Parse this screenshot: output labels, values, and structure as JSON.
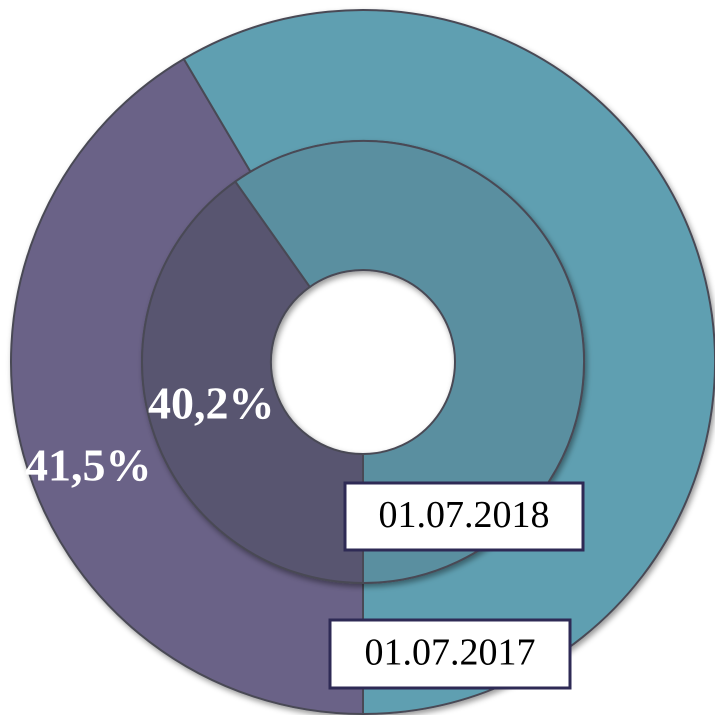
{
  "chart_data": {
    "type": "donut",
    "start_angle": 180,
    "series": [
      {
        "name": "01.07.2017",
        "values": [
          41.5,
          58.5
        ],
        "value_labels": [
          "41,5%",
          null
        ],
        "colors": [
          "#6a6287",
          "#5f9fb1"
        ]
      },
      {
        "name": "01.07.2018",
        "values": [
          40.2,
          59.8
        ],
        "value_labels": [
          "40,2%",
          null
        ],
        "colors": [
          "#58546f",
          "#5a8fa0"
        ]
      }
    ]
  }
}
